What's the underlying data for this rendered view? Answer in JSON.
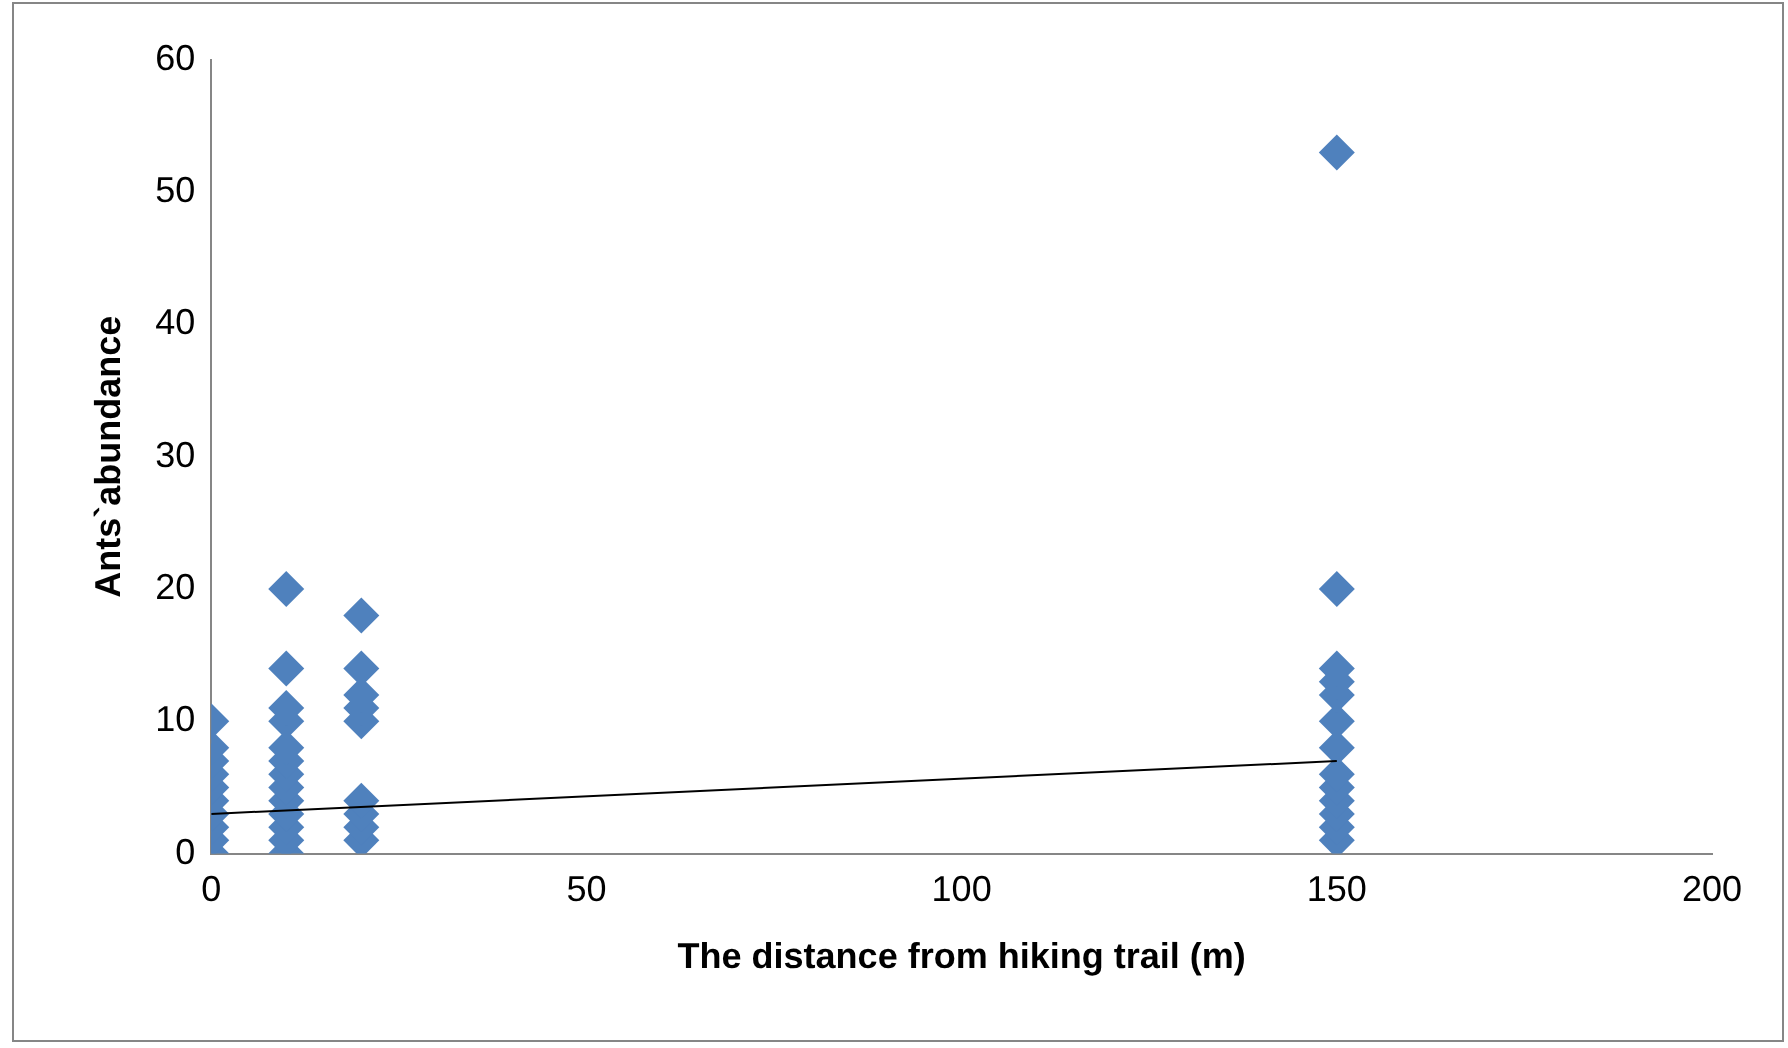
{
  "chart_data": {
    "type": "scatter",
    "xlabel": "The distance from hiking trail (m)",
    "ylabel": "Ants`abundance",
    "xlim": [
      0,
      200
    ],
    "xticks": [
      0,
      50,
      100,
      150,
      200
    ],
    "ylim": [
      0,
      60
    ],
    "yticks": [
      0,
      10,
      20,
      30,
      40,
      50,
      60
    ],
    "grid": false,
    "legend": false,
    "marker": "diamond",
    "series": [
      {
        "color": "#4f81bd",
        "x": [
          0,
          0,
          0,
          0,
          0,
          0,
          0,
          0,
          0,
          0,
          10,
          10,
          10,
          10,
          10,
          10,
          10,
          10,
          10,
          10,
          10,
          10,
          10,
          20,
          20,
          20,
          20,
          20,
          20,
          20,
          20,
          20,
          150,
          150,
          150,
          150,
          150,
          150,
          150,
          150,
          150,
          150,
          150,
          150,
          150
        ],
        "values": [
          0,
          1,
          2,
          3,
          4,
          5,
          6,
          7,
          8,
          10,
          0,
          1,
          2,
          3,
          4,
          5,
          6,
          7,
          8,
          10,
          11,
          14,
          20,
          1,
          2,
          3,
          4,
          10,
          11,
          12,
          14,
          18,
          1,
          2,
          3,
          4,
          5,
          6,
          8,
          10,
          12,
          13,
          14,
          20,
          53
        ]
      },
      {
        "type": "line",
        "color": "#000000",
        "marker": "none",
        "x": [
          0,
          150
        ],
        "values": [
          3,
          7
        ]
      }
    ]
  }
}
